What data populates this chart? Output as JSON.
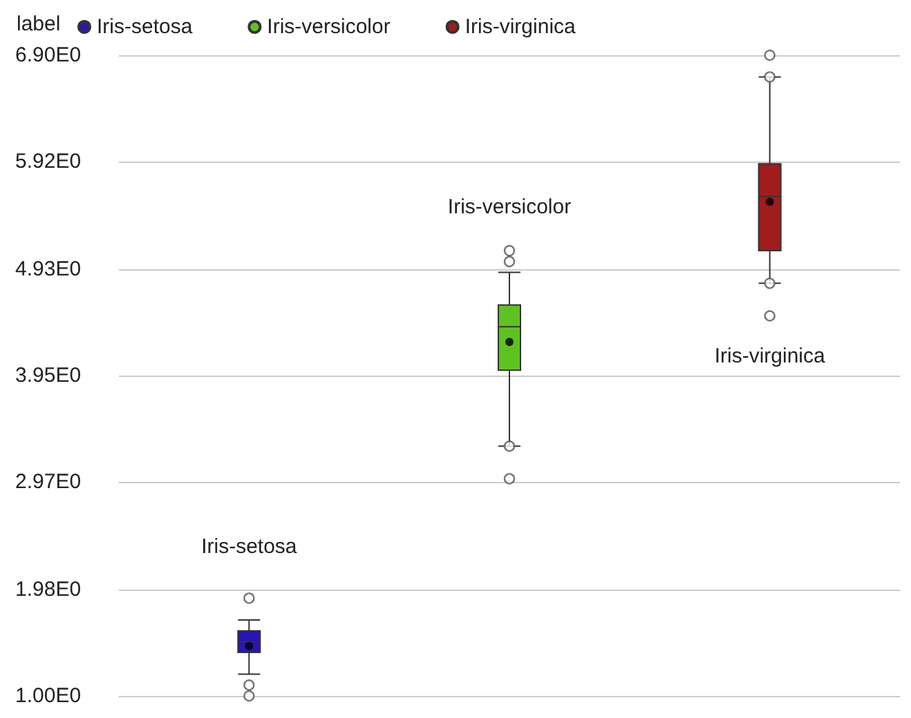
{
  "chart_data": {
    "type": "box",
    "categories": [
      null,
      null,
      null
    ],
    "legend_title": "label",
    "legend": "top left",
    "grid": "y",
    "marker": "circle",
    "ylim": [
      1.0,
      6.9
    ],
    "yticks": [
      {
        "value": 1.0,
        "label": "1.00E0"
      },
      {
        "value": 1.98,
        "label": "1.98E0"
      },
      {
        "value": 2.97,
        "label": "2.97E0"
      },
      {
        "value": 3.95,
        "label": "3.95E0"
      },
      {
        "value": 4.93,
        "label": "4.93E0"
      },
      {
        "value": 5.92,
        "label": "5.92E0"
      },
      {
        "value": 6.9,
        "label": "6.90E0"
      }
    ],
    "series": [
      {
        "name": "Iris-setosa",
        "color": "#2b14b8",
        "boxes": [
          {
            "low": 1.2,
            "q1": 1.4,
            "median": 1.5,
            "q3": 1.6,
            "high": 1.7,
            "mean": 1.46,
            "outliers": [
              1.9,
              1.1,
              1.0
            ]
          },
          null,
          null
        ]
      },
      {
        "name": "Iris-versicolor",
        "color": "#5ec321",
        "boxes": [
          null,
          {
            "low": 3.3,
            "q1": 4.0,
            "median": 4.4,
            "q3": 4.6,
            "high": 4.9,
            "mean": 4.26,
            "outliers": [
              5.1,
              5.0,
              3.3,
              3.0
            ]
          },
          null
        ]
      },
      {
        "name": "Iris-virginica",
        "color": "#a11c1c",
        "boxes": [
          null,
          null,
          {
            "low": 4.8,
            "q1": 5.1,
            "median": 5.6,
            "q3": 5.9,
            "high": 6.7,
            "mean": 5.55,
            "outliers": [
              6.9,
              6.7,
              4.8,
              4.5
            ]
          }
        ]
      }
    ],
    "annotations": [
      "Iris-setosa",
      "Iris-versicolor",
      "Iris-virginica"
    ]
  }
}
